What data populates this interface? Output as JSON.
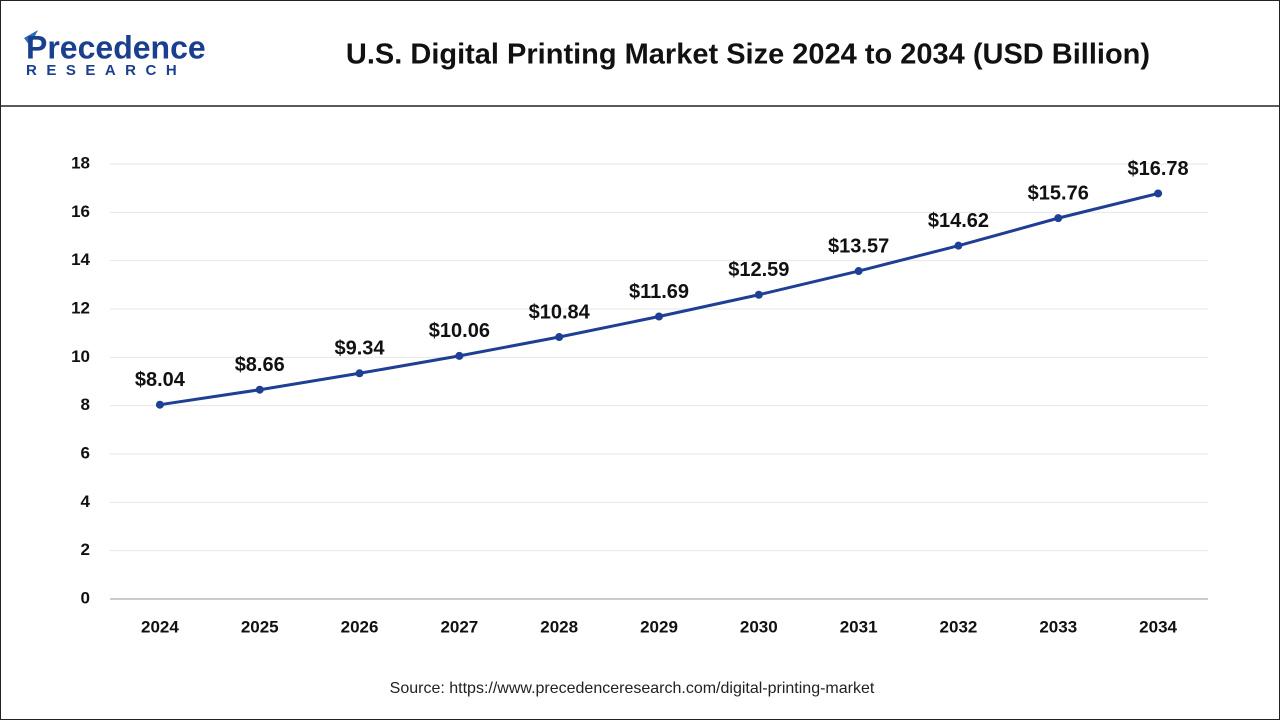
{
  "logo": {
    "name": "Precedence",
    "tagline": "RESEARCH"
  },
  "chart_data": {
    "type": "line",
    "title": "U.S. Digital Printing Market Size 2024 to 2034 (USD Billion)",
    "source": "Source: https://www.precedenceresearch.com/digital-printing-market",
    "categories": [
      "2024",
      "2025",
      "2026",
      "2027",
      "2028",
      "2029",
      "2030",
      "2031",
      "2032",
      "2033",
      "2034"
    ],
    "values": [
      8.04,
      8.66,
      9.34,
      10.06,
      10.84,
      11.69,
      12.59,
      13.57,
      14.62,
      15.76,
      16.78
    ],
    "value_labels": [
      "$8.04",
      "$8.66",
      "$9.34",
      "$10.06",
      "$10.84",
      "$11.69",
      "$12.59",
      "$13.57",
      "$14.62",
      "$15.76",
      "$16.78"
    ],
    "color": "#1f3f94",
    "ylim": [
      0,
      18
    ],
    "yticks": [
      0,
      2,
      4,
      6,
      8,
      10,
      12,
      14,
      16,
      18
    ],
    "grid": true
  }
}
